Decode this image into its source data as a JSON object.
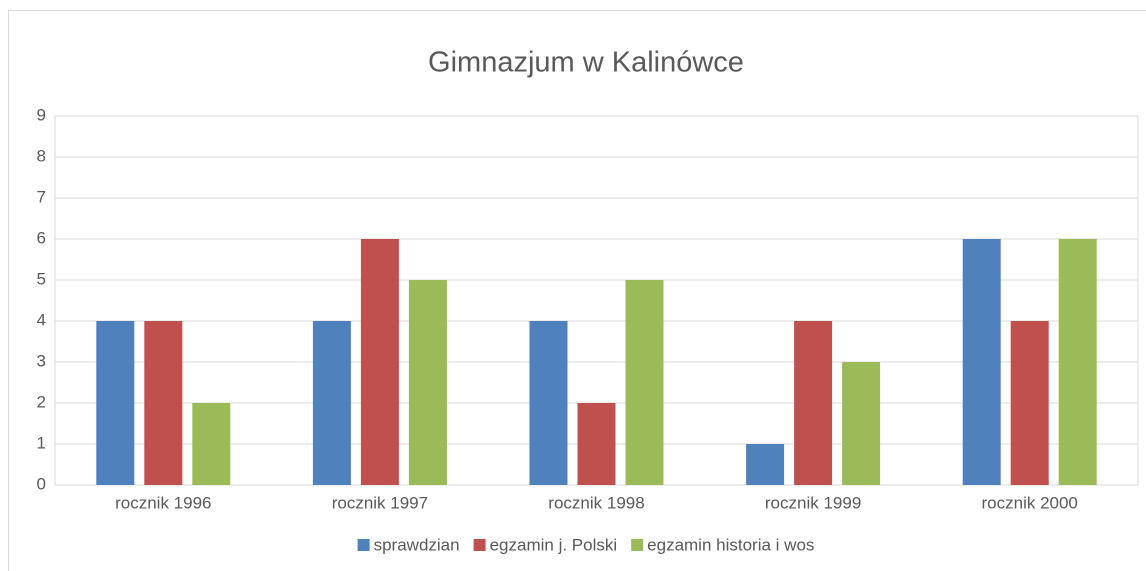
{
  "chart_data": {
    "type": "bar",
    "title": "Gimnazjum w Kalinówce",
    "categories": [
      "rocznik 1996",
      "rocznik 1997",
      "rocznik 1998",
      "rocznik 1999",
      "rocznik 2000"
    ],
    "series": [
      {
        "name": "sprawdzian",
        "color": "#4f81bd",
        "values": [
          4,
          4,
          4,
          1,
          6
        ]
      },
      {
        "name": "egzamin j. Polski",
        "color": "#c0504d",
        "values": [
          4,
          6,
          2,
          4,
          4
        ]
      },
      {
        "name": "egzamin historia i wos",
        "color": "#9bbb59",
        "values": [
          2,
          5,
          5,
          3,
          6
        ]
      }
    ],
    "ylim": [
      0,
      9
    ],
    "yticks": [
      0,
      1,
      2,
      3,
      4,
      5,
      6,
      7,
      8,
      9
    ],
    "grid": true,
    "legend": "bottom"
  }
}
